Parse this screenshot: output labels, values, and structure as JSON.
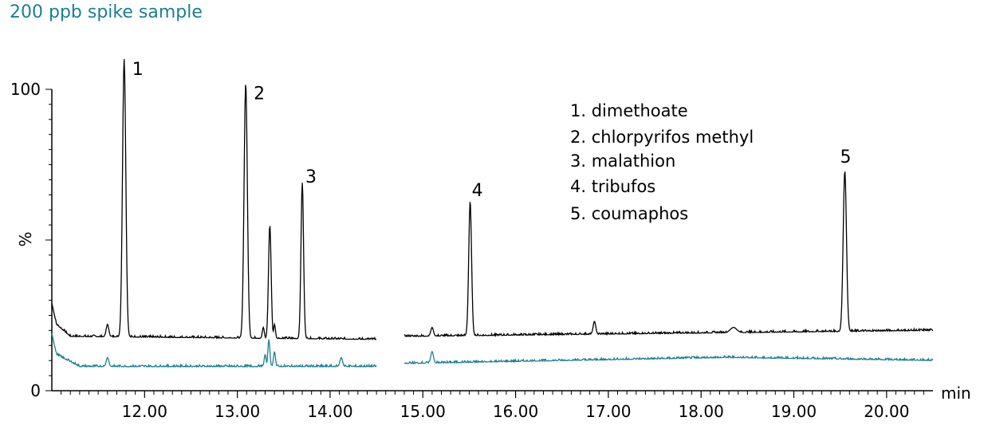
{
  "chart_data": {
    "type": "line",
    "title": "200 ppb spike sample",
    "xlabel": "min",
    "ylabel": "%",
    "xlim": [
      11.0,
      20.5
    ],
    "ylim": [
      0,
      100
    ],
    "x_ticks": [
      "12.00",
      "13.00",
      "14.00",
      "15.00",
      "16.00",
      "17.00",
      "18.00",
      "19.00",
      "20.00"
    ],
    "y_ticks": [
      "0",
      "100"
    ],
    "grid": false,
    "colors": {
      "black_trace": "#000000",
      "teal_trace": "#1a7f94"
    },
    "segments": [
      [
        11.0,
        14.5
      ],
      [
        14.8,
        20.5
      ]
    ],
    "series": [
      {
        "color": "#000000",
        "baseline": [
          [
            11.0,
            29
          ],
          [
            11.05,
            22
          ],
          [
            11.2,
            18
          ],
          [
            14.5,
            17
          ],
          [
            14.8,
            18
          ],
          [
            20.5,
            20
          ]
        ],
        "peaks": [
          {
            "x": 11.78,
            "y": 110,
            "w": 0.025
          },
          {
            "x": 13.09,
            "y": 102,
            "w": 0.025
          },
          {
            "x": 13.35,
            "y": 55,
            "w": 0.02
          },
          {
            "x": 13.7,
            "y": 69,
            "w": 0.02
          },
          {
            "x": 15.51,
            "y": 63,
            "w": 0.022
          },
          {
            "x": 19.55,
            "y": 73,
            "w": 0.025
          },
          {
            "x": 11.6,
            "y": 22,
            "w": 0.02
          },
          {
            "x": 13.28,
            "y": 21,
            "w": 0.015
          },
          {
            "x": 13.4,
            "y": 22,
            "w": 0.015
          },
          {
            "x": 15.1,
            "y": 21,
            "w": 0.02
          },
          {
            "x": 16.85,
            "y": 23,
            "w": 0.02
          },
          {
            "x": 18.35,
            "y": 21,
            "w": 0.05
          }
        ]
      },
      {
        "color": "#1a7f94",
        "baseline": [
          [
            11.0,
            19
          ],
          [
            11.05,
            12
          ],
          [
            11.3,
            8
          ],
          [
            14.5,
            8
          ],
          [
            14.8,
            9
          ],
          [
            18.3,
            11
          ],
          [
            20.5,
            10
          ]
        ],
        "peaks": [
          {
            "x": 11.6,
            "y": 11,
            "w": 0.02
          },
          {
            "x": 13.3,
            "y": 12,
            "w": 0.015
          },
          {
            "x": 13.34,
            "y": 17,
            "w": 0.015
          },
          {
            "x": 13.4,
            "y": 13,
            "w": 0.015
          },
          {
            "x": 14.12,
            "y": 11,
            "w": 0.02
          },
          {
            "x": 15.1,
            "y": 13,
            "w": 0.02
          }
        ]
      }
    ],
    "peak_labels": [
      {
        "text": "1",
        "x": 11.78,
        "y": 110
      },
      {
        "text": "2",
        "x": 13.09,
        "y": 102
      },
      {
        "text": "3",
        "x": 13.7,
        "y": 69
      },
      {
        "text": "4",
        "x": 15.51,
        "y": 63
      },
      {
        "text": "5",
        "x": 19.55,
        "y": 73
      }
    ],
    "legend": [
      "1. dimethoate",
      "2. chlorpyrifos methyl",
      "3. malathion",
      "4. tribufos",
      "5. coumaphos"
    ]
  }
}
